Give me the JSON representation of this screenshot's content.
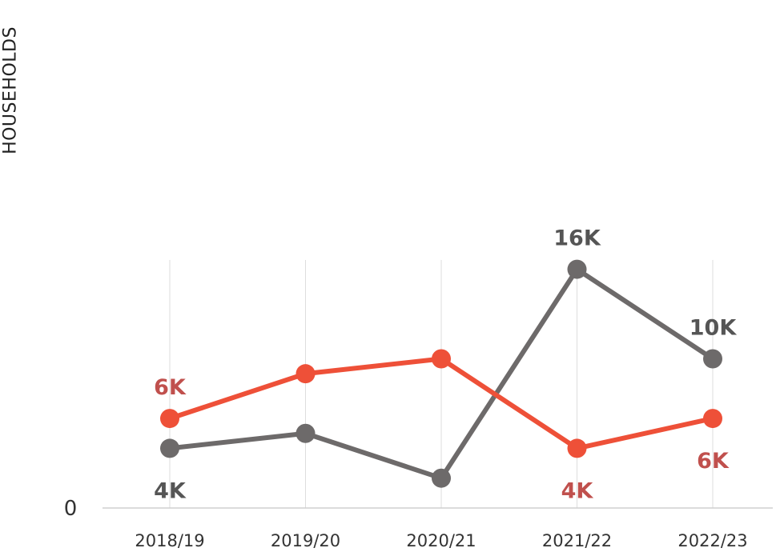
{
  "chart_data": {
    "type": "line",
    "ylabel": "HOUSEHOLDS",
    "xlabel": "",
    "title": "",
    "categories": [
      "2018/19",
      "2019/20",
      "2020/21",
      "2021/22",
      "2022/23"
    ],
    "y_tick_labels": [
      "0"
    ],
    "ylim": [
      0,
      20
    ],
    "grid": "vertical",
    "legend": "none",
    "series": [
      {
        "color": "#6d6a6a",
        "label_color": "#555555",
        "values": [
          4,
          5,
          2,
          16,
          10
        ],
        "data_labels": [
          {
            "index": 0,
            "text": "4K",
            "position": "below"
          },
          {
            "index": 3,
            "text": "16K",
            "position": "above"
          },
          {
            "index": 4,
            "text": "10K",
            "position": "above"
          }
        ]
      },
      {
        "color": "#ee5038",
        "label_color": "#c0504d",
        "values": [
          6,
          9,
          10,
          4,
          6
        ],
        "data_labels": [
          {
            "index": 0,
            "text": "6K",
            "position": "above"
          },
          {
            "index": 3,
            "text": "4K",
            "position": "below"
          },
          {
            "index": 4,
            "text": "6K",
            "position": "below"
          }
        ]
      }
    ]
  }
}
